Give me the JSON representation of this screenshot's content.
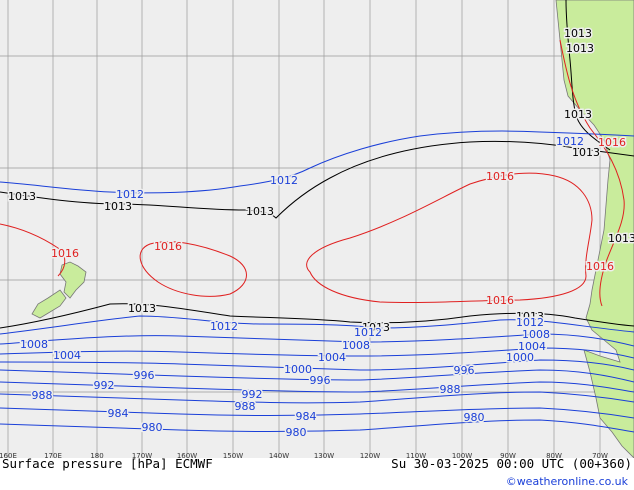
{
  "map": {
    "ocean_color": "#eeeeee",
    "land_color": "#c9ec9c",
    "grid_color": "#9a9a9a",
    "coast_color": "#777777",
    "colors": {
      "low": "#1a3fd8",
      "mid": "#000000",
      "high": "#e02020"
    },
    "lon_labels": [
      "160E",
      "170E",
      "180",
      "170W",
      "160W",
      "150W",
      "140W",
      "130W",
      "120W",
      "110W",
      "100W",
      "90W",
      "80W",
      "70W"
    ],
    "isobar_labels": [
      {
        "text": "1013",
        "kind": "mid"
      },
      {
        "text": "1013",
        "kind": "mid"
      },
      {
        "text": "1013",
        "kind": "mid"
      },
      {
        "text": "1013",
        "kind": "mid"
      },
      {
        "text": "1013",
        "kind": "mid"
      },
      {
        "text": "1013",
        "kind": "mid"
      },
      {
        "text": "1013",
        "kind": "mid"
      },
      {
        "text": "1013",
        "kind": "mid"
      },
      {
        "text": "1013",
        "kind": "mid"
      },
      {
        "text": "1013",
        "kind": "mid"
      },
      {
        "text": "1013",
        "kind": "mid"
      },
      {
        "text": "1012",
        "kind": "low"
      },
      {
        "text": "1012",
        "kind": "low"
      },
      {
        "text": "1012",
        "kind": "low"
      },
      {
        "text": "1012",
        "kind": "low"
      },
      {
        "text": "1012",
        "kind": "low"
      },
      {
        "text": "1012",
        "kind": "low"
      },
      {
        "text": "1016",
        "kind": "high"
      },
      {
        "text": "1016",
        "kind": "high"
      },
      {
        "text": "1016",
        "kind": "high"
      },
      {
        "text": "1016",
        "kind": "high"
      },
      {
        "text": "1016",
        "kind": "high"
      },
      {
        "text": "1016",
        "kind": "high"
      },
      {
        "text": "1008",
        "kind": "low"
      },
      {
        "text": "1008",
        "kind": "low"
      },
      {
        "text": "1008",
        "kind": "low"
      },
      {
        "text": "1004",
        "kind": "low"
      },
      {
        "text": "1004",
        "kind": "low"
      },
      {
        "text": "1004",
        "kind": "low"
      },
      {
        "text": "1000",
        "kind": "low"
      },
      {
        "text": "1000",
        "kind": "low"
      },
      {
        "text": "996",
        "kind": "low"
      },
      {
        "text": "996",
        "kind": "low"
      },
      {
        "text": "996",
        "kind": "low"
      },
      {
        "text": "992",
        "kind": "low"
      },
      {
        "text": "992",
        "kind": "low"
      },
      {
        "text": "988",
        "kind": "low"
      },
      {
        "text": "988",
        "kind": "low"
      },
      {
        "text": "988",
        "kind": "low"
      },
      {
        "text": "984",
        "kind": "low"
      },
      {
        "text": "984",
        "kind": "low"
      },
      {
        "text": "980",
        "kind": "low"
      },
      {
        "text": "980",
        "kind": "low"
      },
      {
        "text": "980",
        "kind": "low"
      }
    ]
  },
  "footer": {
    "title": "Surface pressure [hPa] ECMWF",
    "valid": "Su 30-03-2025 00:00 UTC (00+360)",
    "credit": "©weatheronline.co.uk"
  }
}
